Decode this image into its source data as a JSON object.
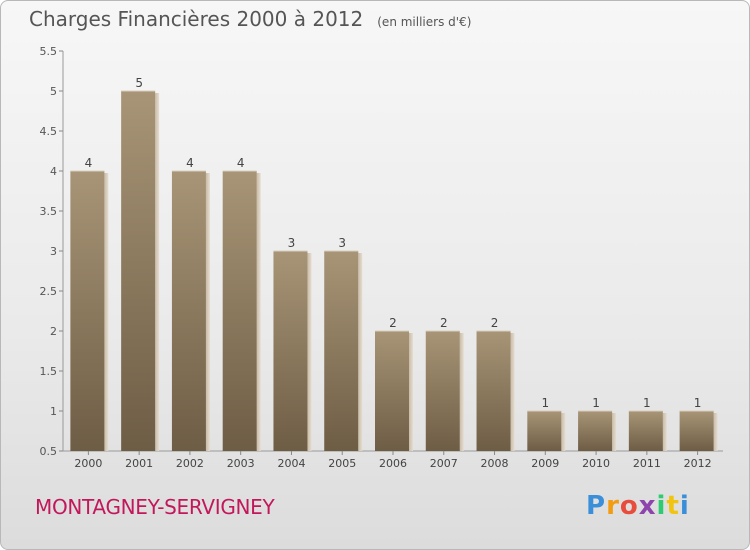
{
  "title": "Charges Financières 2000 à 2012",
  "subtitle": "(en milliers d'€)",
  "commune": "MONTAGNEY-SERVIGNEY",
  "logo": {
    "letters": [
      "P",
      "r",
      "o",
      "x",
      "i",
      "t",
      "i"
    ],
    "colors": [
      "#3b8fd8",
      "#f39c12",
      "#e74c3c",
      "#8e44ad",
      "#2ecc71",
      "#f1c40f",
      "#3b8fd8"
    ]
  },
  "colors": {
    "bar": "#8c7a5e",
    "title": "#555555",
    "commune": "#c2185b"
  },
  "chart_data": {
    "type": "bar",
    "categories": [
      "2000",
      "2001",
      "2002",
      "2003",
      "2004",
      "2005",
      "2006",
      "2007",
      "2008",
      "2009",
      "2010",
      "2011",
      "2012"
    ],
    "values": [
      4,
      5,
      4,
      4,
      3,
      3,
      2,
      2,
      2,
      1,
      1,
      1,
      1
    ],
    "data_labels": [
      "4",
      "5",
      "4",
      "4",
      "3",
      "3",
      "2",
      "2",
      "2",
      "1",
      "1",
      "1",
      "1"
    ],
    "yticks": [
      "0.5",
      "1",
      "1.5",
      "2",
      "2.5",
      "3",
      "3.5",
      "4",
      "4.5",
      "5",
      "5.5"
    ],
    "ylim": [
      0.5,
      5.5
    ],
    "grid": false
  }
}
